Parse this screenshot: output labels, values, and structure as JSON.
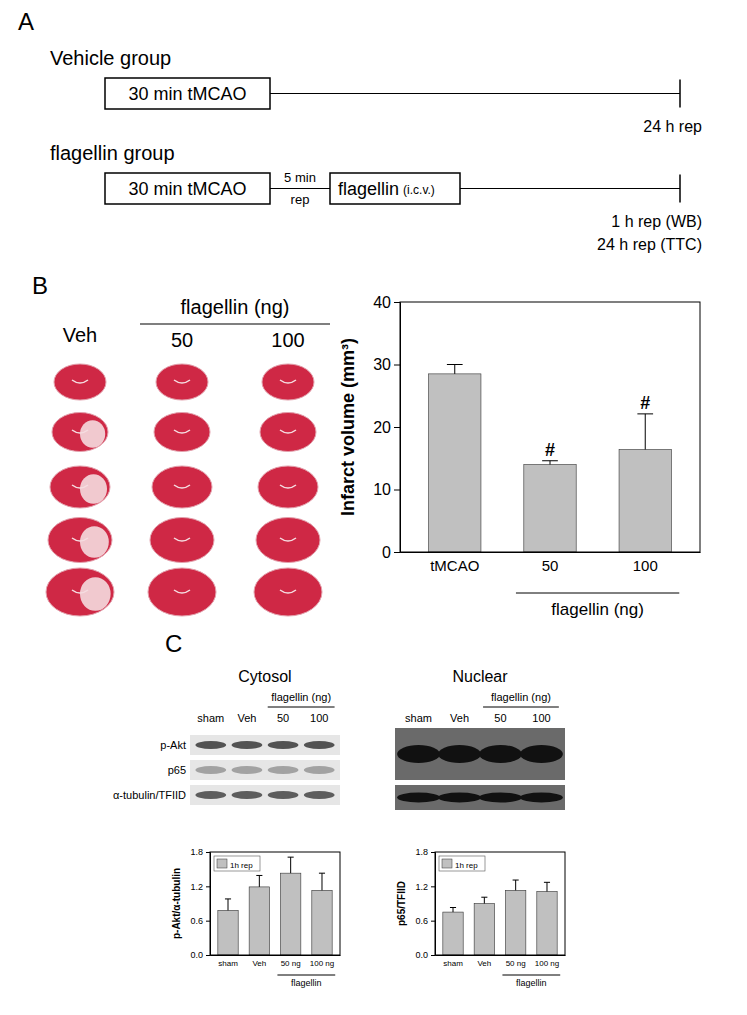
{
  "panel_labels": [
    "A",
    "B",
    "C"
  ],
  "diagram": {
    "groups": [
      {
        "title": "Vehicle group",
        "steps": [
          {
            "text": "30 min tMCAO"
          }
        ],
        "end_labels": [
          "24 h rep"
        ]
      },
      {
        "title": "flagellin group",
        "steps": [
          {
            "text": "30 min tMCAO"
          },
          {
            "text": "flagellin",
            "note": "(i.c.v.)"
          }
        ],
        "gap_labels": [
          "5 min",
          "rep"
        ],
        "end_labels": [
          "1 h rep (WB)",
          "24 h rep (TTC)"
        ]
      }
    ]
  },
  "slices": {
    "columns": [
      "Veh",
      "50",
      "100"
    ],
    "groups": [
      {
        "label": "flagellin (ng)",
        "columns": [
          "50",
          "100"
        ]
      }
    ]
  },
  "blots": {
    "panels": [
      {
        "title": "Cytosol",
        "lanes": [
          "sham",
          "Veh",
          "50",
          "100"
        ],
        "groups": [
          {
            "label": "flagellin (ng)",
            "lanes": [
              "50",
              "100"
            ]
          }
        ],
        "rows": [
          "p-Akt",
          "p65",
          "α-tubulin/TFIID"
        ]
      },
      {
        "title": "Nuclear",
        "lanes": [
          "sham",
          "Veh",
          "50",
          "100"
        ],
        "groups": [
          {
            "label": "flagellin (ng)",
            "lanes": [
              "50",
              "100"
            ]
          }
        ]
      }
    ]
  },
  "chart_data": [
    {
      "type": "bar",
      "categories": [
        "tMCAO",
        "50",
        "100"
      ],
      "groups": [
        {
          "label": "flagellin (ng)",
          "categories": [
            "50",
            "100"
          ]
        }
      ],
      "y_label": "Infarct volume (mm³)",
      "values": [
        28.5,
        14,
        16.4
      ],
      "errors": [
        1.5,
        0.6,
        5.7
      ],
      "annotations": [
        null,
        "#",
        "#"
      ],
      "color": "#c0c0c0",
      "ylim": [
        0,
        40
      ],
      "yticks": [
        0,
        10,
        20,
        30,
        40
      ]
    },
    {
      "type": "bar",
      "categories": [
        "sham",
        "Veh",
        "50 ng",
        "100 ng"
      ],
      "groups": [
        {
          "label": "flagellin",
          "categories": [
            "50 ng",
            "100 ng"
          ]
        }
      ],
      "y_label": "p-Akt/α-tubulin",
      "legend": "top-left",
      "series": [
        {
          "name": "1h rep",
          "color": "#c0c0c0",
          "values": [
            0.78,
            1.19,
            1.43,
            1.13
          ],
          "errors": [
            0.2,
            0.2,
            0.28,
            0.3
          ]
        }
      ],
      "ylim": [
        0,
        1.8
      ],
      "yticks": [
        {
          "value": 0,
          "label": "0.0"
        },
        0.6,
        1.2,
        1.8
      ]
    },
    {
      "type": "bar",
      "categories": [
        "sham",
        "Veh",
        "50 ng",
        "100 ng"
      ],
      "groups": [
        {
          "label": "flagellin",
          "categories": [
            "50 ng",
            "100 ng"
          ]
        }
      ],
      "y_label": "p65/TFIID",
      "legend": "top-left",
      "series": [
        {
          "name": "1h rep",
          "color": "#c0c0c0",
          "values": [
            0.75,
            0.9,
            1.13,
            1.11
          ],
          "errors": [
            0.08,
            0.11,
            0.18,
            0.16
          ]
        }
      ],
      "ylim": [
        0,
        1.8
      ],
      "yticks": [
        {
          "value": 0,
          "label": "0.0"
        },
        0.6,
        1.2,
        1.8
      ]
    }
  ]
}
